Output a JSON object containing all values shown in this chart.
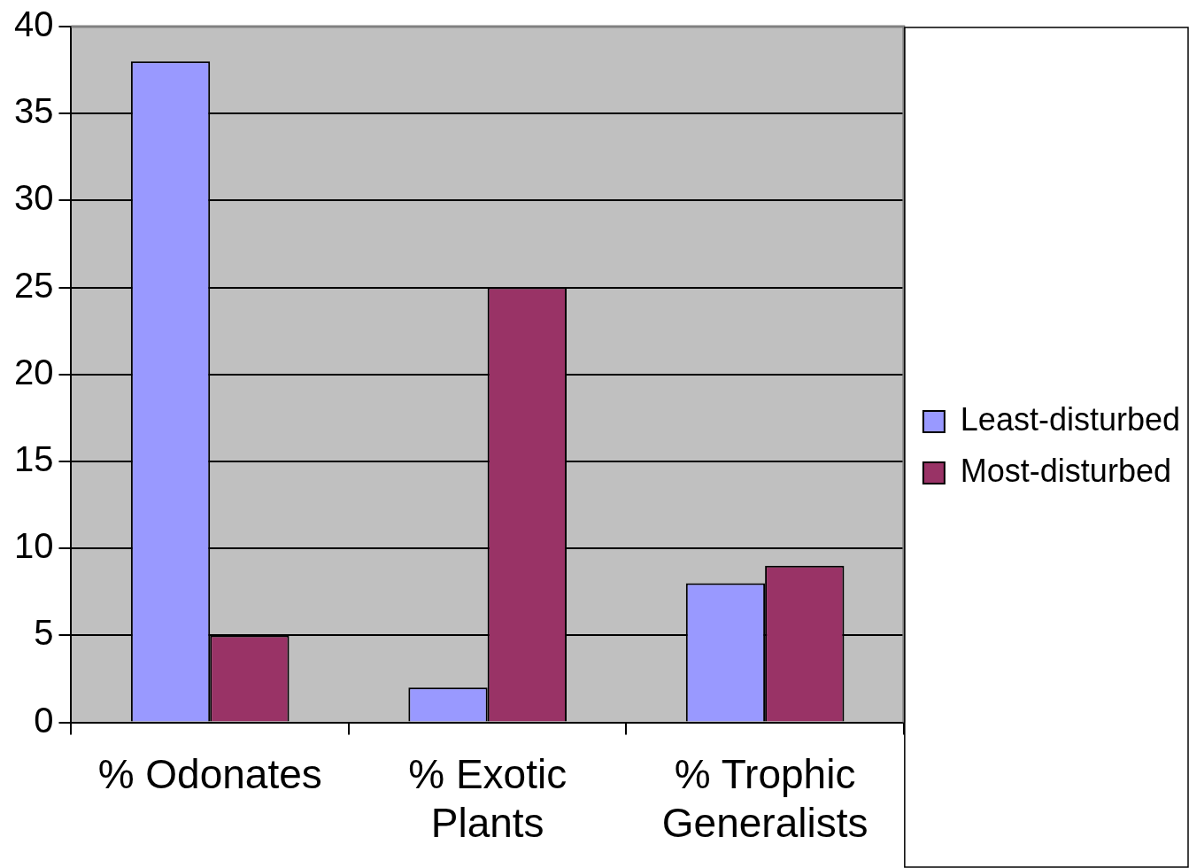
{
  "chart_data": {
    "type": "bar",
    "categories": [
      "% Odonates",
      "% Exotic Plants",
      "% Trophic Generalists"
    ],
    "series": [
      {
        "name": "Least-disturbed",
        "color": "#9999ff",
        "values": [
          38,
          2,
          8
        ]
      },
      {
        "name": "Most-disturbed",
        "color": "#993366",
        "values": [
          5,
          25,
          9
        ]
      }
    ],
    "ylim": [
      0,
      40
    ],
    "yticks": [
      0,
      5,
      10,
      15,
      20,
      25,
      30,
      35,
      40
    ],
    "grid": "y",
    "legend": "right"
  }
}
